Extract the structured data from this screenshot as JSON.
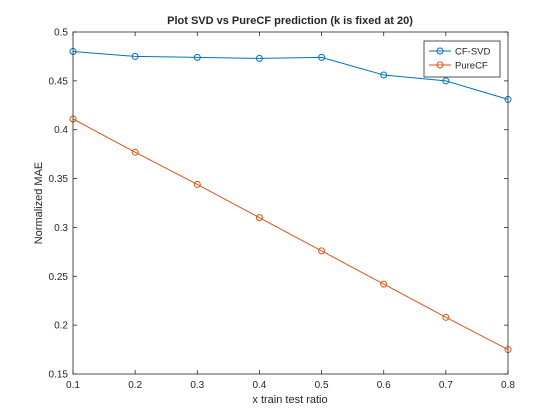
{
  "chart_data": {
    "type": "line",
    "title": "Plot SVD vs PureCF prediction (k is fixed at 20)",
    "xlabel": "x train test ratio",
    "ylabel": "Normalized MAE",
    "xlim": [
      0.1,
      0.8
    ],
    "ylim": [
      0.15,
      0.5
    ],
    "x_ticks": [
      "0.1",
      "0.2",
      "0.3",
      "0.4",
      "0.5",
      "0.6",
      "0.7",
      "0.8"
    ],
    "y_ticks": [
      "0.15",
      "0.2",
      "0.25",
      "0.3",
      "0.35",
      "0.4",
      "0.45",
      "0.5"
    ],
    "x": [
      0.1,
      0.2,
      0.3,
      0.4,
      0.5,
      0.6,
      0.7,
      0.8
    ],
    "series": [
      {
        "name": "CF-SVD",
        "color": "#0072BD",
        "marker": "circle",
        "values": [
          0.48,
          0.475,
          0.474,
          0.473,
          0.474,
          0.456,
          0.45,
          0.431
        ]
      },
      {
        "name": "PureCF",
        "color": "#D95319",
        "marker": "circle",
        "values": [
          0.411,
          0.377,
          0.344,
          0.31,
          0.276,
          0.242,
          0.208,
          0.175
        ]
      }
    ],
    "grid": false,
    "legend_position": "top-right"
  }
}
